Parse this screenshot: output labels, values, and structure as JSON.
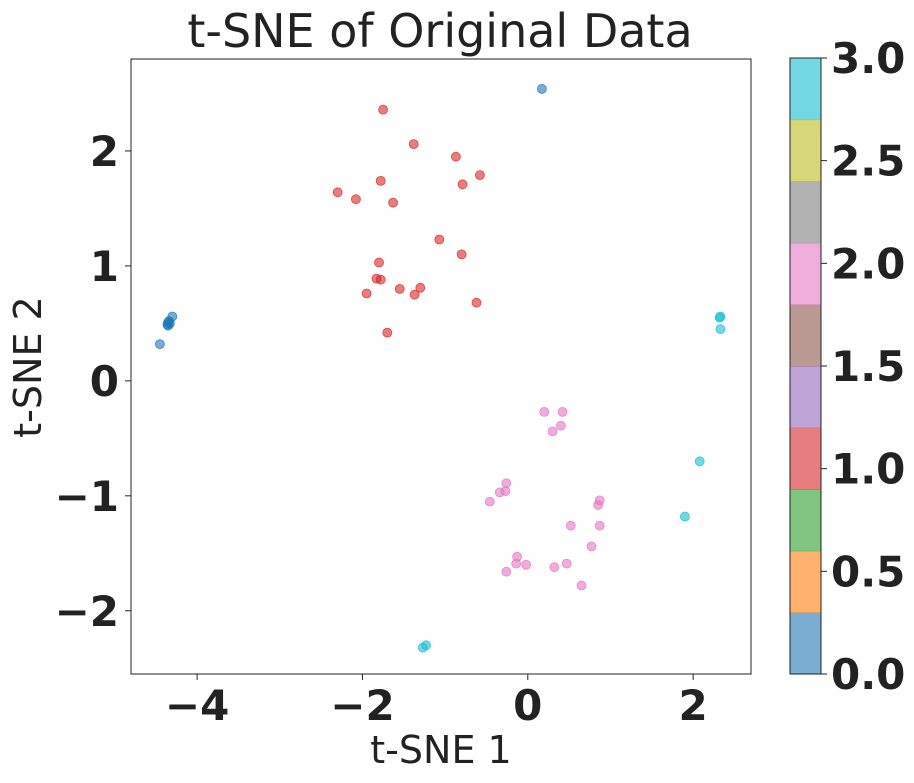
{
  "chart_data": {
    "type": "scatter",
    "title": "t-SNE of Original Data",
    "xlabel": "t-SNE 1",
    "ylabel": "t-SNE 2",
    "xlim": [
      -4.8,
      2.7
    ],
    "ylim": [
      -2.55,
      2.8
    ],
    "xticks": [
      -4,
      -2,
      0,
      2
    ],
    "yticks": [
      -2,
      -1,
      0,
      1,
      2
    ],
    "grid": false,
    "colorbar": {
      "range": [
        0.0,
        3.0
      ],
      "ticks": [
        "0.0",
        "0.5",
        "1.0",
        "1.5",
        "2.0",
        "2.5",
        "3.0"
      ],
      "bands": [
        "#1f77b4",
        "#ff7f0e",
        "#2ca02c",
        "#d62728",
        "#9467bd",
        "#8c564b",
        "#e377c2",
        "#7f7f7f",
        "#bcbd22",
        "#17becf"
      ]
    },
    "series": [
      {
        "value": 0,
        "color": "#1f77b4",
        "points": [
          [
            0.17,
            2.54
          ],
          [
            -4.45,
            0.32
          ],
          [
            -4.3,
            0.56
          ],
          [
            -4.34,
            0.52
          ],
          [
            -4.36,
            0.49
          ],
          [
            -4.35,
            0.51
          ],
          [
            -4.33,
            0.5
          ],
          [
            -4.35,
            0.48
          ]
        ]
      },
      {
        "value": 1,
        "color": "#d62728",
        "points": [
          [
            -1.75,
            2.36
          ],
          [
            -1.38,
            2.06
          ],
          [
            -0.87,
            1.95
          ],
          [
            -1.78,
            1.74
          ],
          [
            -0.79,
            1.71
          ],
          [
            -0.58,
            1.79
          ],
          [
            -2.3,
            1.64
          ],
          [
            -2.08,
            1.58
          ],
          [
            -1.63,
            1.55
          ],
          [
            -1.07,
            1.23
          ],
          [
            -0.8,
            1.1
          ],
          [
            -1.8,
            1.03
          ],
          [
            -1.83,
            0.89
          ],
          [
            -1.78,
            0.88
          ],
          [
            -1.55,
            0.8
          ],
          [
            -1.95,
            0.76
          ],
          [
            -1.3,
            0.81
          ],
          [
            -1.37,
            0.75
          ],
          [
            -0.62,
            0.68
          ],
          [
            -1.7,
            0.42
          ]
        ]
      },
      {
        "value": 2,
        "color": "#e377c2",
        "points": [
          [
            0.2,
            -0.27
          ],
          [
            0.42,
            -0.27
          ],
          [
            0.4,
            -0.39
          ],
          [
            0.3,
            -0.44
          ],
          [
            -0.26,
            -0.89
          ],
          [
            -0.34,
            -0.97
          ],
          [
            -0.27,
            -0.96
          ],
          [
            -0.46,
            -1.05
          ],
          [
            0.87,
            -1.04
          ],
          [
            0.85,
            -1.08
          ],
          [
            0.87,
            -1.26
          ],
          [
            0.52,
            -1.26
          ],
          [
            0.77,
            -1.44
          ],
          [
            -0.13,
            -1.53
          ],
          [
            -0.14,
            -1.59
          ],
          [
            -0.02,
            -1.6
          ],
          [
            0.47,
            -1.59
          ],
          [
            0.32,
            -1.62
          ],
          [
            -0.26,
            -1.66
          ],
          [
            0.65,
            -1.78
          ]
        ]
      },
      {
        "value": 3,
        "color": "#17becf",
        "points": [
          [
            2.32,
            0.55
          ],
          [
            2.33,
            0.56
          ],
          [
            2.33,
            0.45
          ],
          [
            2.08,
            -0.7
          ],
          [
            1.9,
            -1.18
          ],
          [
            -1.23,
            -2.3
          ],
          [
            -1.27,
            -2.32
          ]
        ]
      }
    ]
  }
}
